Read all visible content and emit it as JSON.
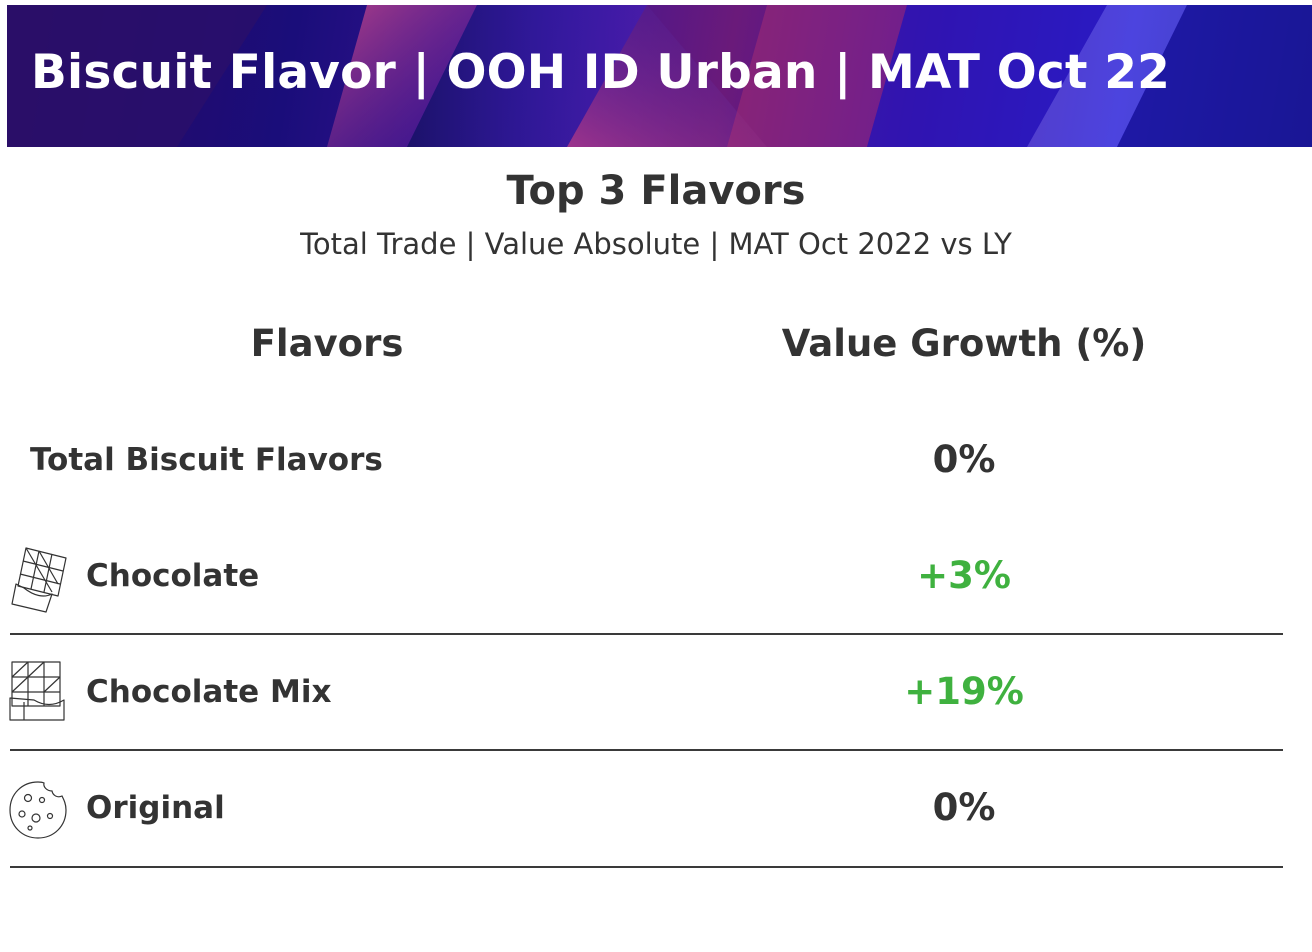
{
  "banner": {
    "title": "Biscuit Flavor | OOH ID Urban | MAT Oct 22"
  },
  "heading": {
    "title": "Top 3 Flavors",
    "subtitle": "Total Trade | Value Absolute | MAT Oct 2022 vs LY"
  },
  "table": {
    "columns": [
      "Flavors",
      "Value Growth (%)"
    ],
    "rows": [
      {
        "flavor": "Total Biscuit Flavors",
        "growth": "0%",
        "icon": "",
        "trend": "neutral"
      },
      {
        "flavor": "Chocolate",
        "growth": "+3%",
        "icon": "chocolate-bar-icon",
        "trend": "positive"
      },
      {
        "flavor": "Chocolate Mix",
        "growth": "+19%",
        "icon": "chocolate-mix-icon",
        "trend": "positive"
      },
      {
        "flavor": "Original",
        "growth": "0%",
        "icon": "cookie-icon",
        "trend": "neutral"
      }
    ]
  },
  "colors": {
    "positive": "#3fb13f",
    "neutral": "#333333",
    "banner_dark": "#1a0d7a",
    "banner_accent": "#b0307a"
  }
}
